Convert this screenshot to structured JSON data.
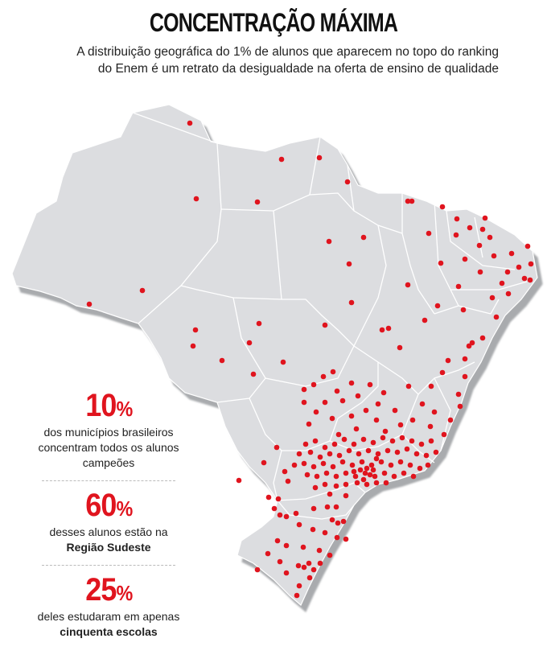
{
  "header": {
    "title": "CONCENTRAÇÃO MÁXIMA",
    "subtitle_line1": "A distribuição geográfica do 1% de alunos que aparecem no topo do ranking",
    "subtitle_line2": "do Enem é um retrato da desigualdade na oferta de ensino de qualidade"
  },
  "stats": [
    {
      "value": "10",
      "unit": "%",
      "text": "dos municípios brasileiros concentram todos os alunos campeões",
      "bold": ""
    },
    {
      "value": "60",
      "unit": "%",
      "text": "desses alunos estão na",
      "bold": "Região Sudeste"
    },
    {
      "value": "25",
      "unit": "%",
      "text": "deles estudaram em apenas",
      "bold": "cinquenta escolas"
    }
  ],
  "colors": {
    "dot": "#e0141e",
    "map_fill": "#dcdde0",
    "map_border": "#ffffff",
    "map_shadow": "#a9abae"
  }
}
